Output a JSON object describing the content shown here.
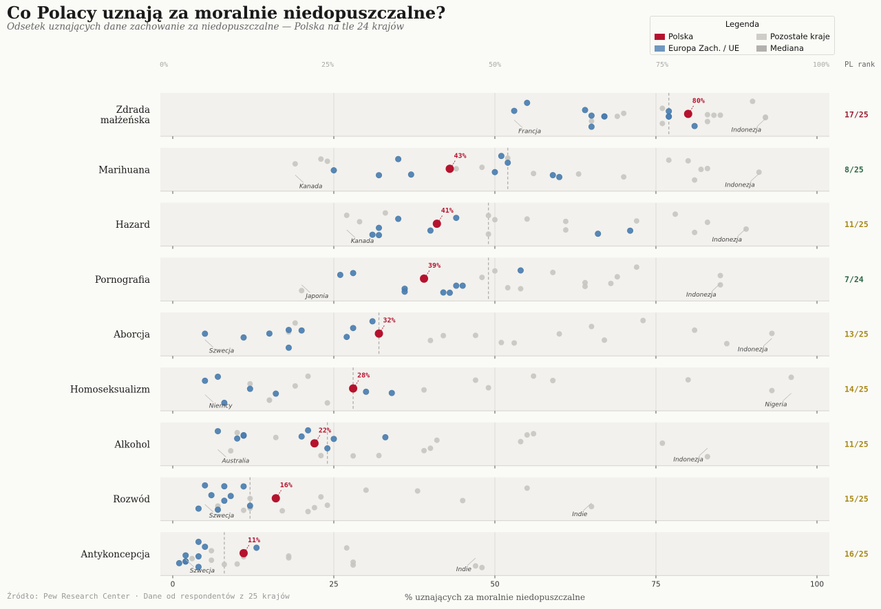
{
  "title": "Co Polacy uznają za moralnie niedopuszczalne?",
  "subtitle": "Odsetek uznających dane zachowanie za niedopuszczalne — Polska na tle 24 krajów",
  "source": "Źródło: Pew Research Center · Dane od respondentów z 25 krajów",
  "legend": {
    "title": "Legenda",
    "items": [
      "Polska",
      "Pozostałe kraje",
      "Europa Zach. / UE",
      "Mediana"
    ]
  },
  "colors": {
    "poland": "#b5122e",
    "west_eu": "#4a7fb2",
    "other": "#c7c5c0",
    "median": "#b0aeab",
    "rank_good": "#2f6b48",
    "rank_mid": "#a88816",
    "rank_bad": "#9a2233",
    "panel": "#f2f1ed"
  },
  "chart_data": {
    "type": "scatter",
    "xlabel": "% uznających za moralnie niedopuszczalne",
    "xlim": [
      0,
      100
    ],
    "top_ticks": [
      "0%",
      "25%",
      "50%",
      "75%",
      "100%"
    ],
    "bottom_ticks": [
      "0",
      "25",
      "50",
      "75",
      "100"
    ],
    "rank_header": "PL rank",
    "rows": [
      {
        "label": [
          "Zdrada",
          "małżeńska"
        ],
        "poland": 80,
        "poland_label": "80%",
        "median": 77,
        "rank": "17/25",
        "rank_level": "bad",
        "west": [
          55,
          53,
          64,
          65,
          65,
          67,
          67,
          77,
          77,
          77,
          81
        ],
        "other": [
          65,
          69,
          70,
          76,
          76,
          83,
          83,
          84,
          85,
          90,
          92,
          92
        ],
        "annotations": [
          {
            "text": "Francja",
            "value": 53
          },
          {
            "text": "Indonezja",
            "value": 92
          }
        ]
      },
      {
        "label": [
          "Marihuana"
        ],
        "poland": 43,
        "poland_label": "43%",
        "median": 52,
        "rank": "8/25",
        "rank_level": "good",
        "west": [
          25,
          32,
          35,
          37,
          50,
          51,
          52,
          59,
          60
        ],
        "other": [
          19,
          23,
          24,
          44,
          48,
          52,
          56,
          63,
          70,
          77,
          80,
          81,
          82,
          83,
          91
        ],
        "annotations": [
          {
            "text": "Kanada",
            "value": 19
          },
          {
            "text": "Indonezja",
            "value": 91
          }
        ]
      },
      {
        "label": [
          "Hazard"
        ],
        "poland": 41,
        "poland_label": "41%",
        "median": 49,
        "rank": "11/25",
        "rank_level": "mid",
        "west": [
          31,
          32,
          32,
          35,
          40,
          44,
          66,
          71
        ],
        "other": [
          27,
          29,
          33,
          49,
          49,
          50,
          55,
          61,
          61,
          72,
          78,
          81,
          83,
          89
        ],
        "annotations": [
          {
            "text": "Kanada",
            "value": 27
          },
          {
            "text": "Indonezja",
            "value": 89
          }
        ]
      },
      {
        "label": [
          "Pornografia"
        ],
        "poland": 39,
        "poland_label": "39%",
        "median": 49,
        "rank": "7/24",
        "rank_level": "good",
        "west": [
          26,
          28,
          36,
          36,
          42,
          43,
          44,
          45,
          54
        ],
        "other": [
          20,
          48,
          50,
          52,
          54,
          59,
          64,
          64,
          68,
          69,
          72,
          85,
          85
        ],
        "annotations": [
          {
            "text": "Japonia",
            "value": 20
          },
          {
            "text": "Indonezja",
            "value": 85
          }
        ]
      },
      {
        "label": [
          "Aborcja"
        ],
        "poland": 32,
        "poland_label": "32%",
        "median": 32,
        "rank": "13/25",
        "rank_level": "mid",
        "west": [
          5,
          11,
          15,
          18,
          18,
          20,
          27,
          28,
          31
        ],
        "other": [
          18,
          19,
          40,
          42,
          47,
          51,
          53,
          60,
          65,
          67,
          73,
          81,
          86,
          93
        ],
        "annotations": [
          {
            "text": "Szwecja",
            "value": 5
          },
          {
            "text": "Indonezja",
            "value": 93
          }
        ]
      },
      {
        "label": [
          "Homoseksualizm"
        ],
        "poland": 28,
        "poland_label": "28%",
        "median": 28,
        "rank": "14/25",
        "rank_level": "mid",
        "west": [
          5,
          7,
          8,
          12,
          16,
          30,
          34
        ],
        "other": [
          12,
          15,
          15,
          19,
          21,
          24,
          39,
          47,
          49,
          56,
          59,
          80,
          93,
          96
        ],
        "annotations": [
          {
            "text": "Niemcy",
            "value": 5
          },
          {
            "text": "Nigeria",
            "value": 96
          }
        ]
      },
      {
        "label": [
          "Alkohol"
        ],
        "poland": 22,
        "poland_label": "22%",
        "median": 24,
        "rank": "11/25",
        "rank_level": "mid",
        "west": [
          7,
          10,
          11,
          11,
          20,
          21,
          24,
          25,
          33
        ],
        "other": [
          9,
          10,
          16,
          23,
          28,
          32,
          39,
          40,
          41,
          54,
          55,
          56,
          76,
          83
        ],
        "annotations": [
          {
            "text": "Australia",
            "value": 7
          },
          {
            "text": "Indonezja",
            "value": 83
          }
        ]
      },
      {
        "label": [
          "Rozwód"
        ],
        "poland": 16,
        "poland_label": "16%",
        "median": 12,
        "rank": "15/25",
        "rank_level": "mid",
        "west": [
          4,
          5,
          6,
          7,
          8,
          8,
          9,
          11,
          12
        ],
        "other": [
          7,
          7,
          11,
          12,
          12,
          17,
          21,
          22,
          23,
          24,
          30,
          38,
          45,
          55,
          65
        ],
        "annotations": [
          {
            "text": "Szwecja",
            "value": 5
          },
          {
            "text": "Indie",
            "value": 65
          }
        ]
      },
      {
        "label": [
          "Antykoncepcja"
        ],
        "poland": 11,
        "poland_label": "11%",
        "median": 8,
        "rank": "16/25",
        "rank_level": "mid",
        "west": [
          1,
          2,
          2,
          2,
          4,
          4,
          4,
          5,
          13
        ],
        "other": [
          3,
          6,
          6,
          8,
          10,
          11,
          18,
          18,
          27,
          28,
          28,
          47,
          48
        ],
        "annotations": [
          {
            "text": "Szwecja",
            "value": 2
          },
          {
            "text": "Indie",
            "value": 47
          }
        ]
      }
    ]
  }
}
